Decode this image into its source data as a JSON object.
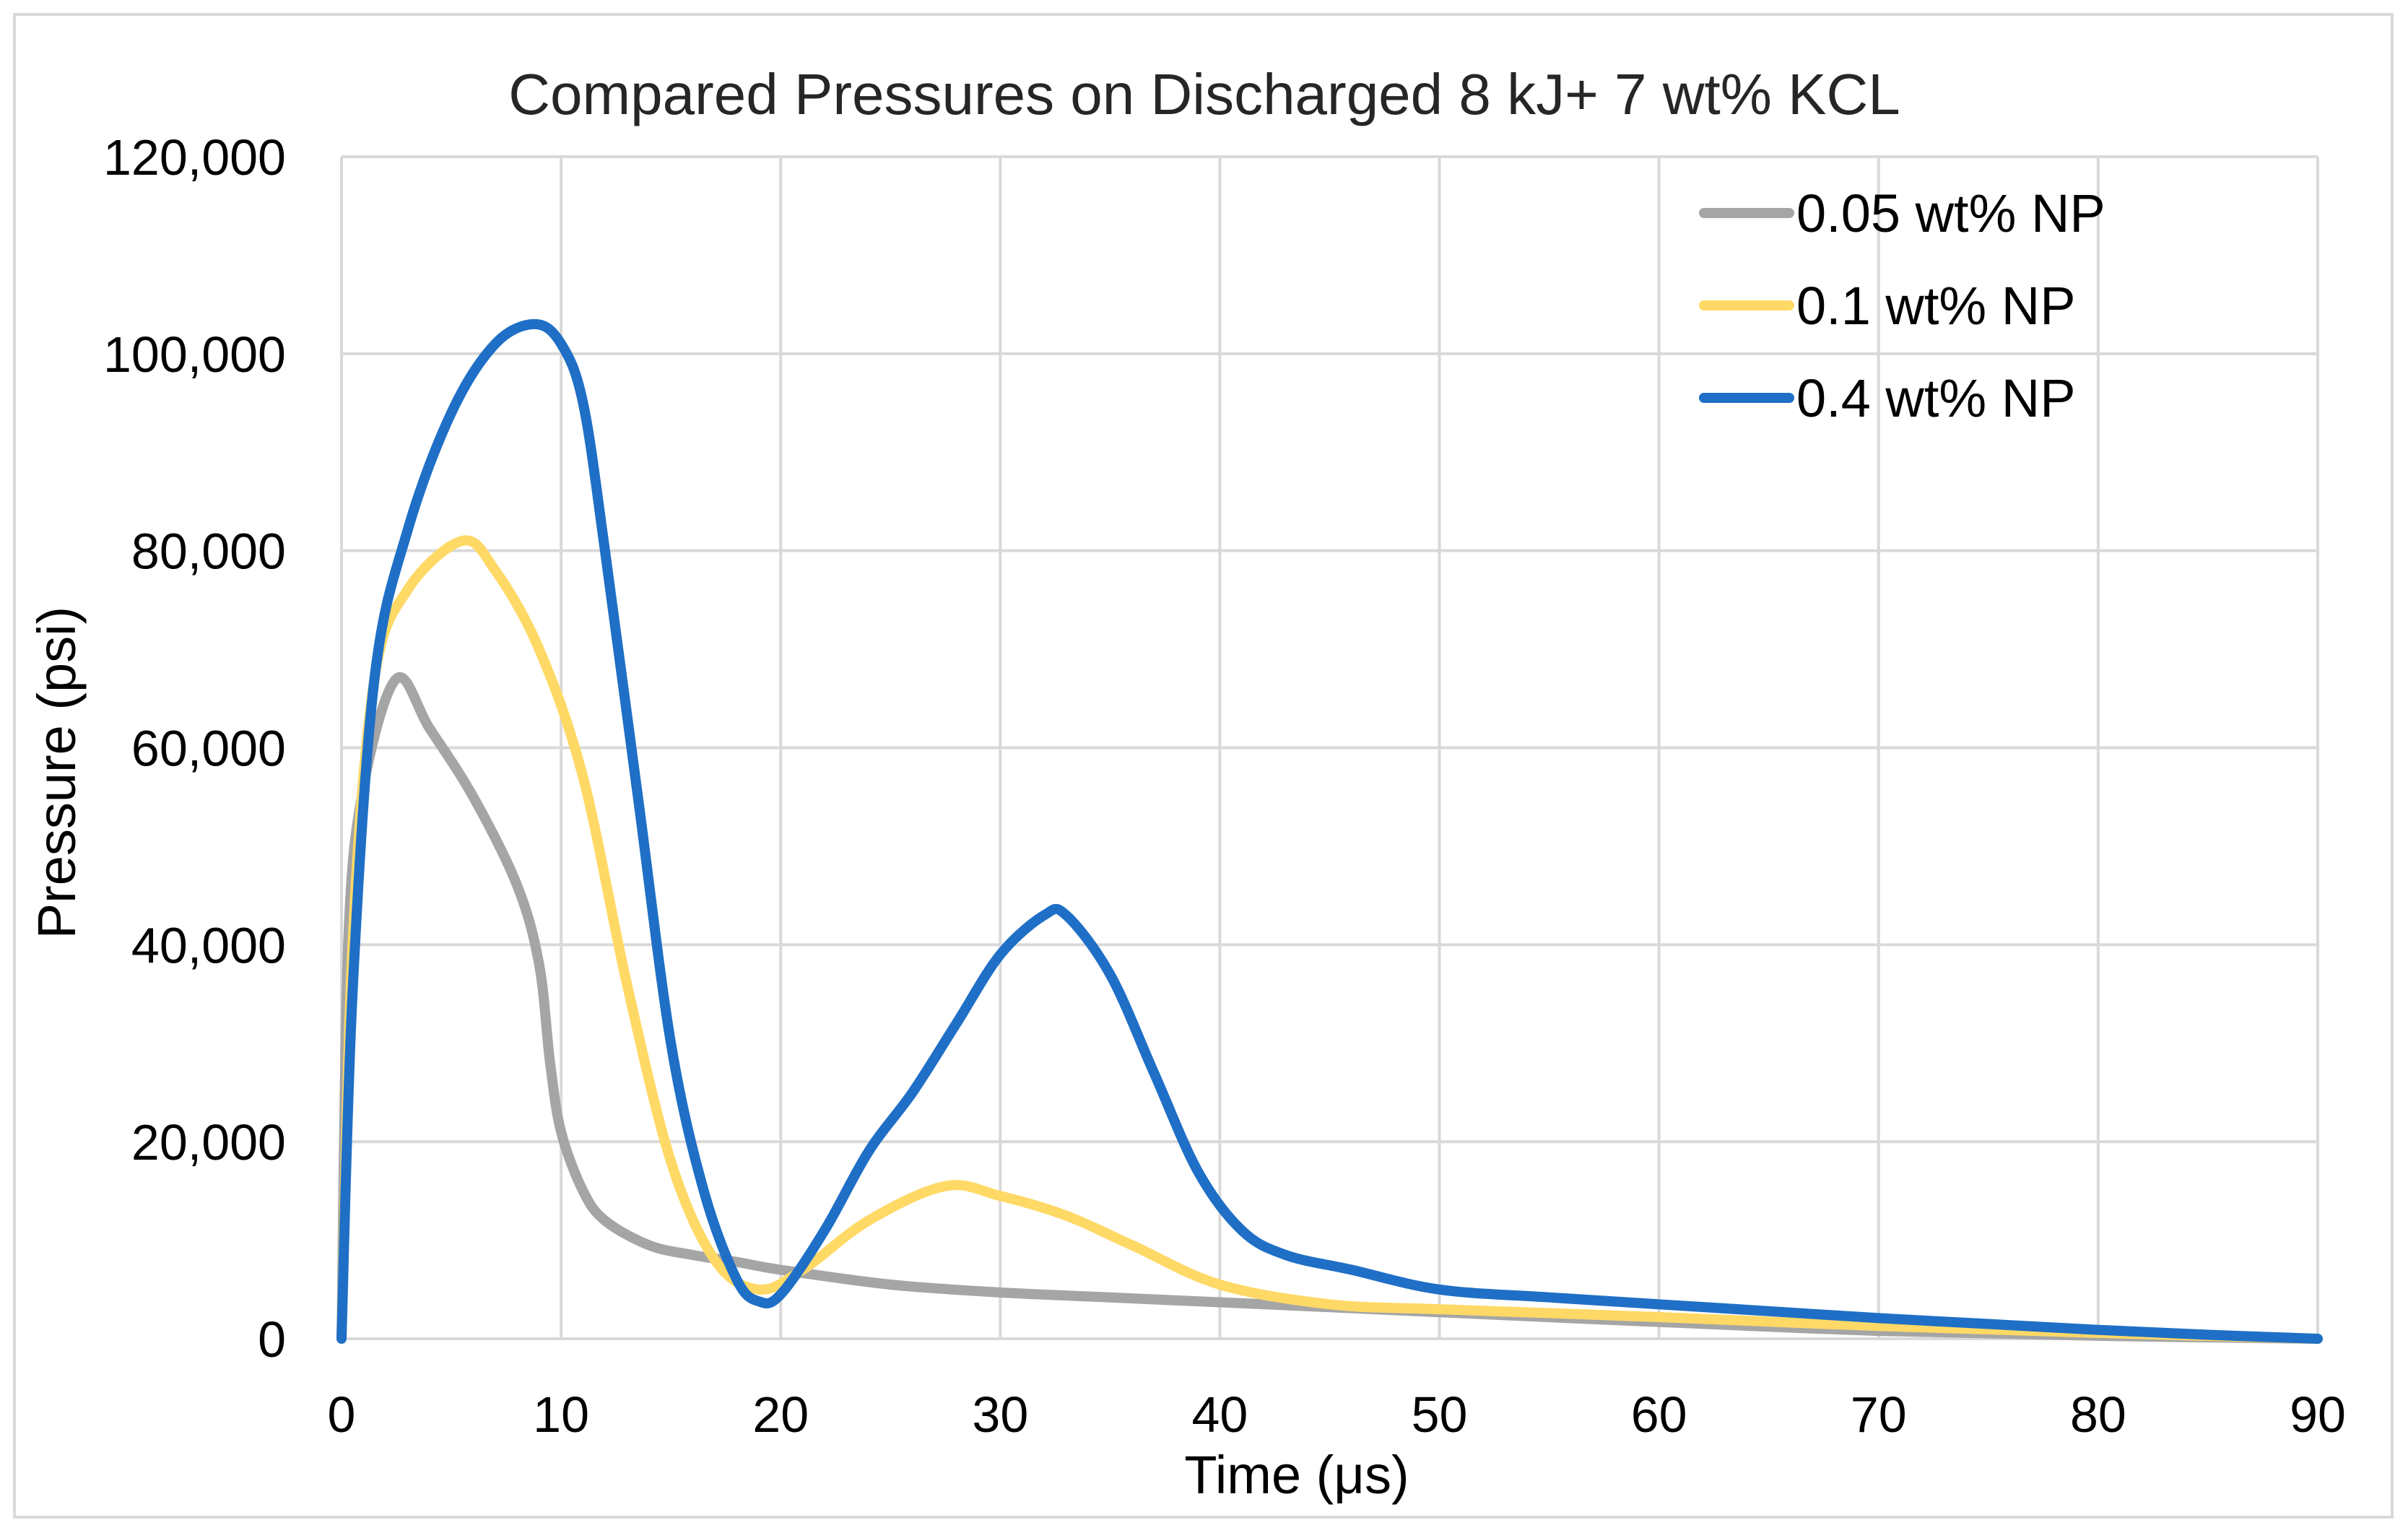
{
  "chart_data": {
    "type": "line",
    "title": "Compared Pressures on Discharged 8 kJ+ 7 wt% KCL",
    "xlabel": "Time (μs)",
    "ylabel": "Pressure (psi)",
    "xlim": [
      0,
      90
    ],
    "ylim": [
      0,
      120000
    ],
    "x_ticks": [
      0,
      10,
      20,
      30,
      40,
      50,
      60,
      70,
      80,
      90
    ],
    "x_tick_labels": [
      "0",
      "10",
      "20",
      "30",
      "40",
      "50",
      "60",
      "70",
      "80",
      "90"
    ],
    "y_ticks": [
      0,
      20000,
      40000,
      60000,
      80000,
      100000,
      120000
    ],
    "y_tick_labels": [
      "0",
      "20,000",
      "40,000",
      "60,000",
      "80,000",
      "100,000",
      "120,000"
    ],
    "grid": true,
    "legend_position": "top-right",
    "series": [
      {
        "name": "0.05 wt% NP",
        "color": "#a5a5a5",
        "points": [
          [
            0,
            0
          ],
          [
            0.3,
            40000
          ],
          [
            1,
            56000
          ],
          [
            2.5,
            67000
          ],
          [
            4,
            62000
          ],
          [
            6,
            55000
          ],
          [
            8,
            46000
          ],
          [
            9,
            38000
          ],
          [
            9.5,
            28000
          ],
          [
            10,
            21000
          ],
          [
            11,
            15000
          ],
          [
            12,
            12000
          ],
          [
            14,
            9500
          ],
          [
            16,
            8500
          ],
          [
            18,
            7800
          ],
          [
            20,
            7000
          ],
          [
            25,
            5500
          ],
          [
            30,
            4700
          ],
          [
            35,
            4200
          ],
          [
            40,
            3700
          ],
          [
            45,
            3200
          ],
          [
            50,
            2700
          ],
          [
            60,
            1700
          ],
          [
            70,
            800
          ],
          [
            80,
            300
          ],
          [
            90,
            0
          ]
        ]
      },
      {
        "name": "0.1 wt% NP",
        "color": "#ffd966",
        "points": [
          [
            0,
            0
          ],
          [
            0.5,
            40000
          ],
          [
            1.5,
            67000
          ],
          [
            3,
            76000
          ],
          [
            5.5,
            81000
          ],
          [
            7,
            78000
          ],
          [
            9,
            70000
          ],
          [
            11,
            57000
          ],
          [
            13,
            36000
          ],
          [
            15,
            18000
          ],
          [
            17,
            8000
          ],
          [
            19,
            5000
          ],
          [
            21,
            7000
          ],
          [
            24,
            12000
          ],
          [
            27.5,
            15500
          ],
          [
            30,
            14500
          ],
          [
            33,
            12500
          ],
          [
            36,
            9500
          ],
          [
            40,
            5500
          ],
          [
            45,
            3500
          ],
          [
            50,
            3000
          ],
          [
            60,
            2200
          ],
          [
            70,
            1300
          ],
          [
            80,
            600
          ],
          [
            90,
            0
          ]
        ]
      },
      {
        "name": "0.4 wt% NP",
        "color": "#1f6fc6",
        "points": [
          [
            0,
            0
          ],
          [
            0.5,
            35000
          ],
          [
            1.5,
            67000
          ],
          [
            3,
            82000
          ],
          [
            5,
            94000
          ],
          [
            7,
            101000
          ],
          [
            8.8,
            103000
          ],
          [
            10,
            101000
          ],
          [
            11,
            95000
          ],
          [
            12,
            80000
          ],
          [
            13.5,
            55000
          ],
          [
            15,
            30000
          ],
          [
            16.5,
            15000
          ],
          [
            18,
            6000
          ],
          [
            19,
            3800
          ],
          [
            20,
            4500
          ],
          [
            22,
            11000
          ],
          [
            24,
            19000
          ],
          [
            26,
            25000
          ],
          [
            28,
            32000
          ],
          [
            30,
            39000
          ],
          [
            32,
            43000
          ],
          [
            33,
            43000
          ],
          [
            35,
            37000
          ],
          [
            37,
            27000
          ],
          [
            39,
            17000
          ],
          [
            41,
            11000
          ],
          [
            43,
            8500
          ],
          [
            46,
            7000
          ],
          [
            50,
            5000
          ],
          [
            55,
            4200
          ],
          [
            60,
            3500
          ],
          [
            65,
            2800
          ],
          [
            70,
            2100
          ],
          [
            75,
            1500
          ],
          [
            80,
            900
          ],
          [
            85,
            400
          ],
          [
            90,
            0
          ]
        ]
      }
    ]
  }
}
